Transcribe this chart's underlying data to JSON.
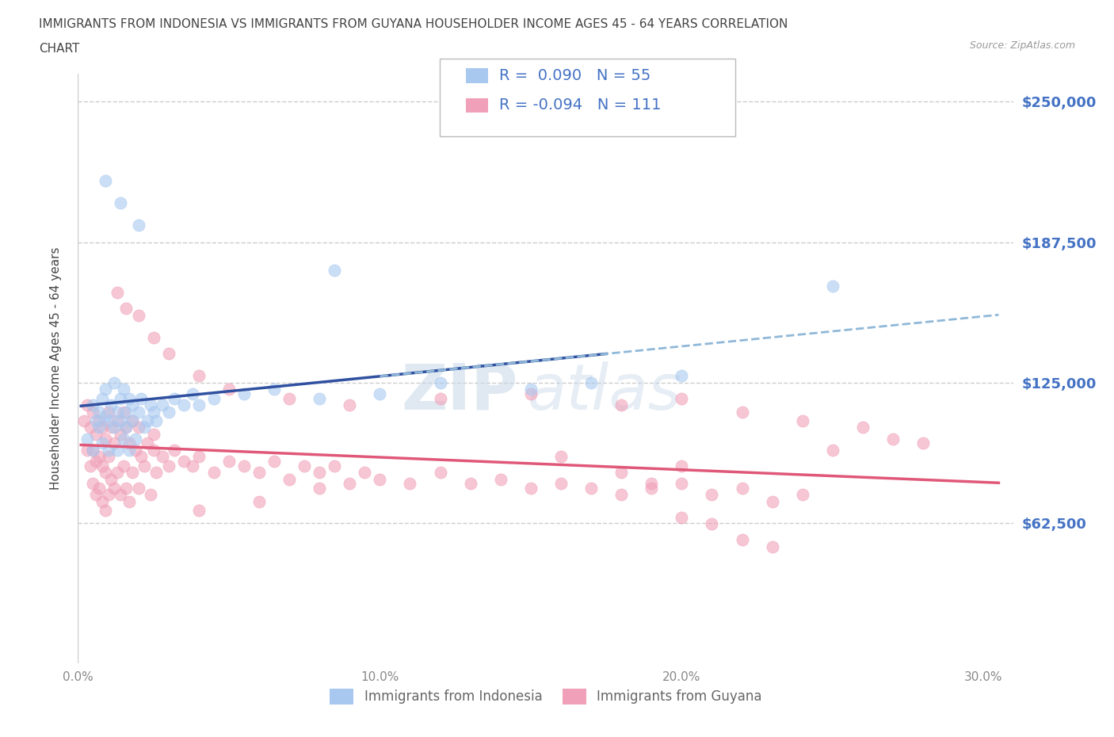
{
  "title_line1": "IMMIGRANTS FROM INDONESIA VS IMMIGRANTS FROM GUYANA HOUSEHOLDER INCOME AGES 45 - 64 YEARS CORRELATION",
  "title_line2": "CHART",
  "source_text": "Source: ZipAtlas.com",
  "ylabel": "Householder Income Ages 45 - 64 years",
  "ytick_labels": [
    "$62,500",
    "$125,000",
    "$187,500",
    "$250,000"
  ],
  "ytick_values": [
    62500,
    125000,
    187500,
    250000
  ],
  "ymin": 0,
  "ymax": 262500,
  "xmin": 0.0,
  "xmax": 0.31,
  "xtick_labels": [
    "0.0%",
    "10.0%",
    "20.0%",
    "30.0%"
  ],
  "xtick_values": [
    0.0,
    0.1,
    0.2,
    0.3
  ],
  "indonesia_color": "#a8c8f0",
  "guyana_color": "#f0a0b8",
  "indonesia_line_color": "#3050a0",
  "guyana_line_color": "#e05878",
  "dashed_line_color": "#90b8d8",
  "R_indonesia": 0.09,
  "N_indonesia": 55,
  "R_guyana": -0.094,
  "N_guyana": 111,
  "legend_label_indonesia": "Immigrants from Indonesia",
  "legend_label_guyana": "Immigrants from Guyana",
  "watermark_zip": "ZIP",
  "watermark_atlas": "atlas",
  "title_color": "#444444",
  "axis_label_color": "#444444",
  "ytick_color": "#4472c4",
  "xtick_color": "#888888",
  "grid_color": "#cccccc",
  "indonesia_x": [
    0.003,
    0.005,
    0.005,
    0.006,
    0.007,
    0.007,
    0.008,
    0.008,
    0.009,
    0.009,
    0.01,
    0.01,
    0.011,
    0.012,
    0.012,
    0.013,
    0.013,
    0.014,
    0.014,
    0.015,
    0.015,
    0.016,
    0.016,
    0.017,
    0.017,
    0.018,
    0.018,
    0.019,
    0.02,
    0.021,
    0.022,
    0.023,
    0.024,
    0.025,
    0.026,
    0.028,
    0.03,
    0.032,
    0.035,
    0.038,
    0.04,
    0.045,
    0.055,
    0.065,
    0.08,
    0.1,
    0.12,
    0.15,
    0.17,
    0.2,
    0.009,
    0.014,
    0.02,
    0.085,
    0.25
  ],
  "indonesia_y": [
    100000,
    95000,
    115000,
    108000,
    112000,
    105000,
    118000,
    98000,
    122000,
    110000,
    95000,
    108000,
    115000,
    105000,
    125000,
    112000,
    95000,
    118000,
    108000,
    100000,
    122000,
    112000,
    105000,
    118000,
    95000,
    108000,
    115000,
    100000,
    112000,
    118000,
    105000,
    108000,
    115000,
    112000,
    108000,
    115000,
    112000,
    118000,
    115000,
    120000,
    115000,
    118000,
    120000,
    122000,
    118000,
    120000,
    125000,
    122000,
    125000,
    128000,
    215000,
    205000,
    195000,
    175000,
    168000
  ],
  "guyana_x": [
    0.002,
    0.003,
    0.003,
    0.004,
    0.004,
    0.005,
    0.005,
    0.005,
    0.006,
    0.006,
    0.006,
    0.007,
    0.007,
    0.007,
    0.008,
    0.008,
    0.008,
    0.009,
    0.009,
    0.009,
    0.01,
    0.01,
    0.01,
    0.011,
    0.011,
    0.012,
    0.012,
    0.013,
    0.013,
    0.014,
    0.014,
    0.015,
    0.015,
    0.016,
    0.016,
    0.017,
    0.017,
    0.018,
    0.018,
    0.019,
    0.02,
    0.02,
    0.021,
    0.022,
    0.023,
    0.024,
    0.025,
    0.026,
    0.028,
    0.03,
    0.032,
    0.035,
    0.038,
    0.04,
    0.045,
    0.05,
    0.055,
    0.06,
    0.065,
    0.07,
    0.075,
    0.08,
    0.085,
    0.09,
    0.095,
    0.1,
    0.11,
    0.12,
    0.13,
    0.14,
    0.15,
    0.16,
    0.17,
    0.18,
    0.19,
    0.2,
    0.21,
    0.22,
    0.23,
    0.24,
    0.013,
    0.016,
    0.02,
    0.025,
    0.03,
    0.04,
    0.05,
    0.07,
    0.09,
    0.12,
    0.15,
    0.18,
    0.2,
    0.22,
    0.24,
    0.26,
    0.27,
    0.28,
    0.2,
    0.16,
    0.18,
    0.19,
    0.2,
    0.21,
    0.22,
    0.23,
    0.025,
    0.04,
    0.06,
    0.08,
    0.25
  ],
  "guyana_y": [
    108000,
    115000,
    95000,
    105000,
    88000,
    112000,
    95000,
    80000,
    102000,
    90000,
    75000,
    108000,
    92000,
    78000,
    105000,
    88000,
    72000,
    100000,
    85000,
    68000,
    112000,
    92000,
    75000,
    105000,
    82000,
    98000,
    78000,
    108000,
    85000,
    102000,
    75000,
    112000,
    88000,
    105000,
    78000,
    98000,
    72000,
    108000,
    85000,
    95000,
    105000,
    78000,
    92000,
    88000,
    98000,
    75000,
    102000,
    85000,
    92000,
    88000,
    95000,
    90000,
    88000,
    92000,
    85000,
    90000,
    88000,
    85000,
    90000,
    82000,
    88000,
    85000,
    88000,
    80000,
    85000,
    82000,
    80000,
    85000,
    80000,
    82000,
    78000,
    80000,
    78000,
    75000,
    78000,
    80000,
    75000,
    78000,
    72000,
    75000,
    165000,
    158000,
    155000,
    145000,
    138000,
    128000,
    122000,
    118000,
    115000,
    118000,
    120000,
    115000,
    118000,
    112000,
    108000,
    105000,
    100000,
    98000,
    88000,
    92000,
    85000,
    80000,
    65000,
    62000,
    55000,
    52000,
    95000,
    68000,
    72000,
    78000,
    95000
  ]
}
